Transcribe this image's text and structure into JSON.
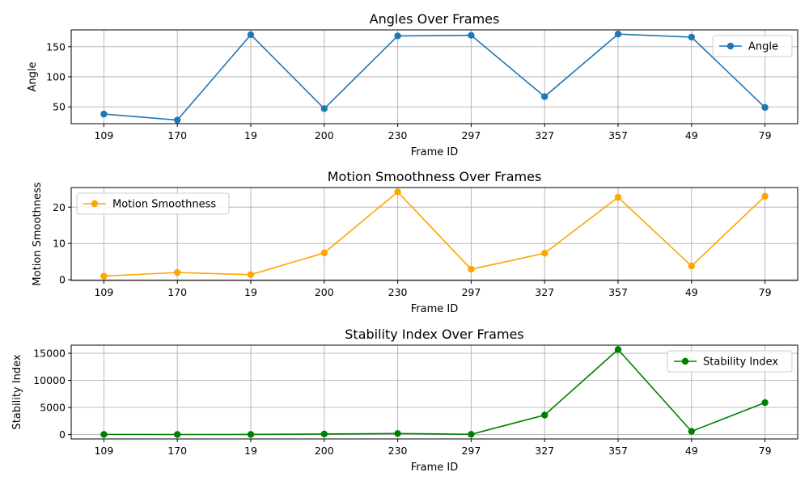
{
  "chart_data": [
    {
      "type": "line",
      "title": "Angles Over Frames",
      "xlabel": "Frame ID",
      "ylabel": "Angle",
      "categories": [
        "109",
        "170",
        "19",
        "200",
        "230",
        "297",
        "327",
        "357",
        "49",
        "79"
      ],
      "series": [
        {
          "name": "Angle",
          "color": "#1f77b4",
          "values": [
            38,
            28,
            170,
            47,
            168,
            169,
            67,
            171,
            166,
            49
          ]
        }
      ],
      "ylim": [
        22,
        178
      ],
      "yticks": [
        50,
        100,
        150
      ],
      "grid": true,
      "legend_position": "top-right"
    },
    {
      "type": "line",
      "title": "Motion Smoothness Over Frames",
      "xlabel": "Frame ID",
      "ylabel": "Motion Smoothness",
      "categories": [
        "109",
        "170",
        "19",
        "200",
        "230",
        "297",
        "327",
        "357",
        "49",
        "79"
      ],
      "series": [
        {
          "name": "Motion Smoothness",
          "color": "#ffa500",
          "values": [
            1.0,
            2.0,
            1.4,
            7.4,
            24.2,
            2.9,
            7.3,
            22.7,
            3.8,
            23.0
          ]
        }
      ],
      "ylim": [
        -0.2,
        25.4
      ],
      "yticks": [
        0,
        10,
        20
      ],
      "grid": true,
      "legend_position": "top-left"
    },
    {
      "type": "line",
      "title": "Stability Index Over Frames",
      "xlabel": "Frame ID",
      "ylabel": "Stability Index",
      "categories": [
        "109",
        "170",
        "19",
        "200",
        "230",
        "297",
        "327",
        "357",
        "49",
        "79"
      ],
      "series": [
        {
          "name": "Stability Index",
          "color": "#008000",
          "values": [
            38,
            20,
            25,
            100,
            200,
            50,
            3600,
            15700,
            600,
            5900
          ]
        }
      ],
      "ylim": [
        -800,
        16500
      ],
      "yticks": [
        0,
        5000,
        10000,
        15000
      ],
      "grid": true,
      "legend_position": "top-right"
    }
  ]
}
